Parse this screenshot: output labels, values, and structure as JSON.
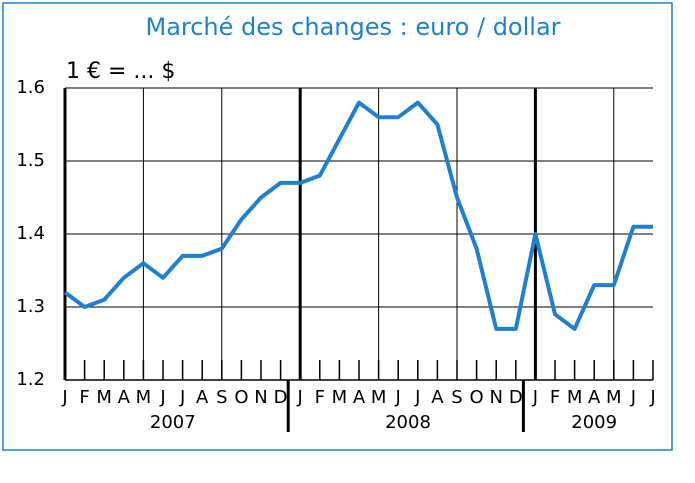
{
  "chart_data": {
    "type": "line",
    "title": "Marché des changes : euro / dollar",
    "subtitle": "1 € = ... $",
    "categories": [
      "J",
      "F",
      "M",
      "A",
      "M",
      "J",
      "J",
      "A",
      "S",
      "O",
      "N",
      "D",
      "J",
      "F",
      "M",
      "A",
      "M",
      "J",
      "J",
      "A",
      "S",
      "O",
      "N",
      "D",
      "J",
      "F",
      "M",
      "A",
      "M",
      "J",
      "J"
    ],
    "year_labels": [
      "2007",
      "2008",
      "2009"
    ],
    "series": [
      {
        "color": "#1f80d2",
        "values": [
          1.32,
          1.3,
          1.31,
          1.34,
          1.36,
          1.34,
          1.37,
          1.37,
          1.38,
          1.42,
          1.45,
          1.47,
          1.47,
          1.48,
          1.53,
          1.58,
          1.56,
          1.56,
          1.58,
          1.55,
          1.45,
          1.38,
          1.27,
          1.27,
          1.4,
          1.29,
          1.27,
          1.33,
          1.33,
          1.41,
          1.41
        ]
      }
    ],
    "ylim": [
      1.2,
      1.6
    ],
    "yticks": [
      1.2,
      1.3,
      1.4,
      1.5,
      1.6
    ],
    "grid": true
  }
}
